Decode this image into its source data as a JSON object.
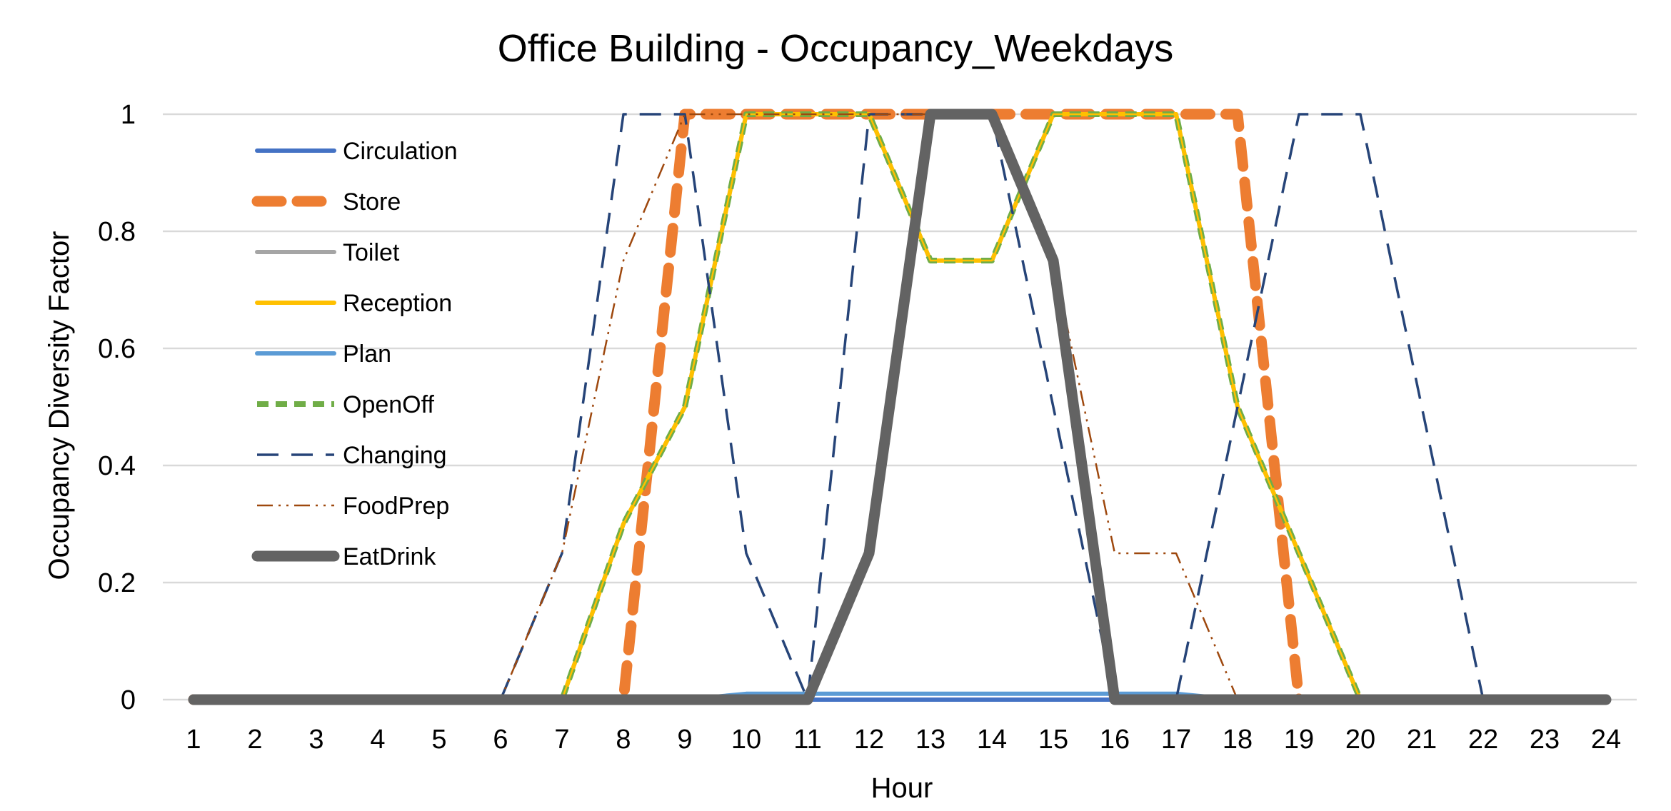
{
  "chart_data": {
    "type": "line",
    "title": "Office Building - Occupancy_Weekdays",
    "xlabel": "Hour",
    "ylabel": "Occupancy Diversity Factor",
    "x": [
      1,
      2,
      3,
      4,
      5,
      6,
      7,
      8,
      9,
      10,
      11,
      12,
      13,
      14,
      15,
      16,
      17,
      18,
      19,
      20,
      21,
      22,
      23,
      24
    ],
    "ylim": [
      0,
      1
    ],
    "yticks": [
      "0",
      "0.2",
      "0.4",
      "0.6",
      "0.8",
      "1"
    ],
    "grid": "horizontal",
    "legend_position": "top-left",
    "series": [
      {
        "name": "Circulation",
        "color": "#4472C4",
        "style": "solid",
        "values": [
          0,
          0,
          0,
          0,
          0,
          0,
          0,
          0,
          0,
          0,
          0,
          0,
          0,
          0,
          0,
          0,
          0,
          0,
          0,
          0,
          0,
          0,
          0,
          0
        ]
      },
      {
        "name": "Store",
        "color": "#ED7D31",
        "style": "dash-heavy",
        "values": [
          0,
          0,
          0,
          0,
          0,
          0,
          0,
          0,
          1,
          1,
          1,
          1,
          1,
          1,
          1,
          1,
          1,
          1,
          0,
          0,
          0,
          0,
          0,
          0
        ]
      },
      {
        "name": "Toilet",
        "color": "#A5A5A5",
        "style": "solid",
        "values": [
          0,
          0,
          0,
          0,
          0,
          0,
          0,
          0.3,
          0.5,
          1,
          1,
          1,
          0.75,
          0.75,
          1,
          1,
          1,
          0.5,
          0.25,
          0,
          0,
          0,
          0,
          0
        ]
      },
      {
        "name": "Reception",
        "color": "#FFC000",
        "style": "solid",
        "values": [
          0,
          0,
          0,
          0,
          0,
          0,
          0,
          0.3,
          0.5,
          1,
          1,
          1,
          0.75,
          0.75,
          1,
          1,
          1,
          0.5,
          0.25,
          0,
          0,
          0,
          0,
          0
        ]
      },
      {
        "name": "Plan",
        "color": "#5B9BD5",
        "style": "solid",
        "values": [
          0,
          0,
          0,
          0,
          0,
          0,
          0,
          0,
          0,
          0.01,
          0.01,
          0.01,
          0.01,
          0.01,
          0.01,
          0.01,
          0.01,
          0,
          0,
          0,
          0,
          0,
          0,
          0
        ]
      },
      {
        "name": "OpenOff",
        "color": "#70AD47",
        "style": "dash",
        "values": [
          0,
          0,
          0,
          0,
          0,
          0,
          0,
          0.3,
          0.5,
          1,
          1,
          1,
          0.75,
          0.75,
          1,
          1,
          1,
          0.5,
          0.25,
          0,
          0,
          0,
          0,
          0
        ]
      },
      {
        "name": "Changing",
        "color": "#264478",
        "style": "long-dash",
        "values": [
          0,
          0,
          0,
          0,
          0,
          0,
          0.25,
          1,
          1,
          0.25,
          0,
          1,
          1,
          1,
          0.5,
          0,
          0,
          0.5,
          1,
          1,
          0.5,
          0,
          0,
          0
        ]
      },
      {
        "name": "FoodPrep",
        "color": "#9E480E",
        "style": "dash-dot-dot",
        "values": [
          0,
          0,
          0,
          0,
          0,
          0,
          0.25,
          0.75,
          1,
          1,
          1,
          1,
          1,
          1,
          0.75,
          0.25,
          0.25,
          0,
          0,
          0,
          0,
          0,
          0,
          0
        ]
      },
      {
        "name": "EatDrink",
        "color": "#636363",
        "style": "solid-heavy",
        "values": [
          0,
          0,
          0,
          0,
          0,
          0,
          0,
          0,
          0,
          0,
          0,
          0.25,
          1,
          1,
          0.75,
          0,
          0,
          0,
          0,
          0,
          0,
          0,
          0,
          0
        ]
      }
    ]
  }
}
